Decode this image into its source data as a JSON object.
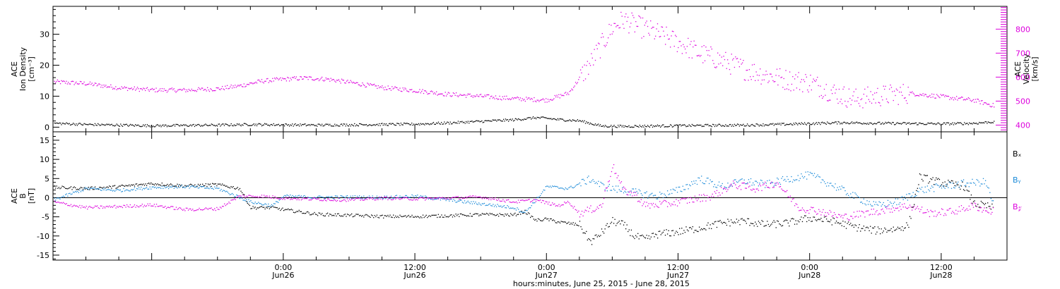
{
  "colors": {
    "density": "#000000",
    "velocity": "#dd00dd",
    "bx": "#000000",
    "by": "#1a8ad8",
    "bz": "#dd00dd",
    "axes": "#000000"
  },
  "chart_data": [
    {
      "type": "scatter",
      "panel": "top",
      "ylabel_left": [
        "ACE",
        "Ion Density",
        "[cm⁻³]"
      ],
      "ylabel_right": [
        "ACE",
        "Velocity",
        "[km/s]"
      ],
      "x_start_hours": -21,
      "x_end_hours": 66,
      "ylim_left": [
        -1.5,
        39
      ],
      "ylim_right": [
        372,
        895
      ],
      "yticks_left": [
        "0",
        "10",
        "20",
        "30"
      ],
      "yticks_right": [
        "400",
        "500",
        "600",
        "700",
        "800"
      ],
      "series": [
        {
          "key": "density",
          "axis": "left",
          "points": [
            [
              -21,
              1.4
            ],
            [
              -18,
              1.0
            ],
            [
              -15,
              0.8
            ],
            [
              -12,
              0.6
            ],
            [
              -9,
              0.7
            ],
            [
              -6,
              0.8
            ],
            [
              -3,
              1.0
            ],
            [
              0,
              0.9
            ],
            [
              3,
              0.8
            ],
            [
              6,
              0.9
            ],
            [
              9,
              1.0
            ],
            [
              12,
              1.1
            ],
            [
              15,
              1.5
            ],
            [
              18,
              2.0
            ],
            [
              21,
              2.5
            ],
            [
              23,
              3.2
            ],
            [
              24,
              3.0
            ],
            [
              25,
              2.6
            ],
            [
              27,
              2.2
            ],
            [
              29,
              0.5
            ],
            [
              31,
              0.4
            ],
            [
              33,
              0.5
            ],
            [
              36,
              0.6
            ],
            [
              39,
              0.7
            ],
            [
              42,
              0.8
            ],
            [
              45,
              1.0
            ],
            [
              48,
              1.3
            ],
            [
              51,
              1.6
            ],
            [
              54,
              1.4
            ],
            [
              57,
              1.3
            ],
            [
              60,
              1.2
            ],
            [
              63,
              1.4
            ],
            [
              64.5,
              1.8
            ]
          ]
        },
        {
          "key": "velocity",
          "axis": "right",
          "points": [
            [
              -21,
              582
            ],
            [
              -18,
              575
            ],
            [
              -15,
              557
            ],
            [
              -12,
              548
            ],
            [
              -9,
              547
            ],
            [
              -6,
              553
            ],
            [
              -4,
              565
            ],
            [
              -2,
              585
            ],
            [
              0,
              593
            ],
            [
              2,
              598
            ],
            [
              4,
              593
            ],
            [
              6,
              580
            ],
            [
              9,
              558
            ],
            [
              12,
              546
            ],
            [
              15,
              530
            ],
            [
              18,
              522
            ],
            [
              21,
              512
            ],
            [
              24,
              506
            ],
            [
              26,
              535
            ],
            [
              28,
              660
            ],
            [
              30,
              810
            ],
            [
              31,
              840
            ],
            [
              32,
              820
            ],
            [
              34,
              785
            ],
            [
              36,
              745
            ],
            [
              38,
              700
            ],
            [
              40,
              670
            ],
            [
              42,
              635
            ],
            [
              44,
              610
            ],
            [
              46,
              590
            ],
            [
              48,
              580
            ],
            [
              50,
              540
            ],
            [
              52,
              510
            ],
            [
              54,
              522
            ],
            [
              57,
              535
            ],
            [
              60,
              520
            ],
            [
              63,
              505
            ],
            [
              65,
              480
            ]
          ]
        }
      ]
    },
    {
      "type": "scatter",
      "panel": "bottom",
      "ylabel": [
        "ACE",
        "B",
        "[nT]"
      ],
      "x_start_hours": -21,
      "x_end_hours": 66,
      "ylim": [
        -16.3,
        17.2
      ],
      "yticks": [
        "-15",
        "-10",
        "-5",
        "0",
        "5",
        "10",
        "15"
      ],
      "series": [
        {
          "key": "bx",
          "name": "Bₓ",
          "points": [
            [
              -21,
              2.8
            ],
            [
              -18,
              2.5
            ],
            [
              -15,
              3.0
            ],
            [
              -12,
              3.8
            ],
            [
              -9,
              3.2
            ],
            [
              -6,
              3.5
            ],
            [
              -4,
              2.5
            ],
            [
              -3,
              -2.5
            ],
            [
              -1,
              -2.5
            ],
            [
              0,
              -3.0
            ],
            [
              3,
              -4.2
            ],
            [
              6,
              -4.5
            ],
            [
              9,
              -4.8
            ],
            [
              12,
              -4.8
            ],
            [
              15,
              -4.6
            ],
            [
              18,
              -4.3
            ],
            [
              21,
              -4.4
            ],
            [
              22,
              -3.5
            ],
            [
              23,
              -5.8
            ],
            [
              24,
              -5.5
            ],
            [
              25,
              -6.2
            ],
            [
              27,
              -7.0
            ],
            [
              28,
              -11.5
            ],
            [
              29,
              -9.0
            ],
            [
              30,
              -6.0
            ],
            [
              31,
              -7.0
            ],
            [
              32,
              -10.0
            ],
            [
              33,
              -10.8
            ],
            [
              34,
              -9.5
            ],
            [
              36,
              -8.8
            ],
            [
              38,
              -7.8
            ],
            [
              40,
              -6.5
            ],
            [
              42,
              -6.0
            ],
            [
              44,
              -7.0
            ],
            [
              46,
              -6.5
            ],
            [
              48,
              -5.2
            ],
            [
              50,
              -6.0
            ],
            [
              52,
              -7.5
            ],
            [
              54,
              -8.5
            ],
            [
              56,
              -8.0
            ],
            [
              57,
              -7.0
            ],
            [
              58,
              5.5
            ],
            [
              60,
              4.0
            ],
            [
              62,
              3.2
            ],
            [
              63,
              -1.5
            ],
            [
              64,
              -2.0
            ],
            [
              65,
              -2.8
            ]
          ]
        },
        {
          "key": "by",
          "name": "Bᵧ",
          "points": [
            [
              -21,
              -0.5
            ],
            [
              -18,
              2.5
            ],
            [
              -15,
              2.0
            ],
            [
              -12,
              2.8
            ],
            [
              -9,
              3.0
            ],
            [
              -6,
              2.5
            ],
            [
              -3,
              -1.0
            ],
            [
              -1,
              -2.0
            ],
            [
              0,
              0.5
            ],
            [
              3,
              0.2
            ],
            [
              6,
              0.3
            ],
            [
              9,
              0.2
            ],
            [
              12,
              0.5
            ],
            [
              15,
              -0.5
            ],
            [
              18,
              -1.5
            ],
            [
              21,
              -2.5
            ],
            [
              22,
              -3.8
            ],
            [
              23,
              -0.5
            ],
            [
              24,
              3.0
            ],
            [
              26,
              2.5
            ],
            [
              28,
              5.0
            ],
            [
              29,
              3.2
            ],
            [
              30,
              2.5
            ],
            [
              32,
              1.5
            ],
            [
              34,
              0.5
            ],
            [
              36,
              2.0
            ],
            [
              38,
              5.0
            ],
            [
              40,
              3.0
            ],
            [
              42,
              4.5
            ],
            [
              44,
              3.5
            ],
            [
              46,
              5.0
            ],
            [
              48,
              6.0
            ],
            [
              50,
              3.5
            ],
            [
              52,
              0.5
            ],
            [
              54,
              -2.0
            ],
            [
              56,
              -1.0
            ],
            [
              58,
              2.0
            ],
            [
              60,
              3.0
            ],
            [
              62,
              3.8
            ],
            [
              64,
              4.2
            ],
            [
              65,
              -3.5
            ]
          ]
        },
        {
          "key": "bz",
          "name": "B𝓏",
          "points": [
            [
              -21,
              -1.0
            ],
            [
              -18,
              -2.5
            ],
            [
              -15,
              -2.2
            ],
            [
              -12,
              -1.8
            ],
            [
              -9,
              -3.0
            ],
            [
              -6,
              -2.8
            ],
            [
              -4,
              0.5
            ],
            [
              -2,
              0.5
            ],
            [
              0,
              0.0
            ],
            [
              3,
              -0.3
            ],
            [
              6,
              -0.5
            ],
            [
              9,
              0.0
            ],
            [
              12,
              -0.2
            ],
            [
              15,
              0.0
            ],
            [
              18,
              0.3
            ],
            [
              21,
              -1.0
            ],
            [
              23,
              -0.5
            ],
            [
              25,
              -2.0
            ],
            [
              26,
              -1.0
            ],
            [
              27,
              -4.0
            ],
            [
              29,
              -2.0
            ],
            [
              30,
              8.5
            ],
            [
              31,
              2.0
            ],
            [
              32,
              1.0
            ],
            [
              33,
              -2.0
            ],
            [
              35,
              -1.5
            ],
            [
              37,
              -0.5
            ],
            [
              39,
              0.5
            ],
            [
              41,
              3.5
            ],
            [
              43,
              2.5
            ],
            [
              45,
              4.0
            ],
            [
              47,
              -2.5
            ],
            [
              49,
              -3.5
            ],
            [
              51,
              -5.0
            ],
            [
              53,
              -4.0
            ],
            [
              55,
              -3.0
            ],
            [
              57,
              -2.0
            ],
            [
              59,
              -4.0
            ],
            [
              61,
              -3.5
            ],
            [
              63,
              -2.0
            ],
            [
              64,
              -3.2
            ],
            [
              65,
              -3.5
            ]
          ]
        }
      ]
    }
  ],
  "x_axis": {
    "ticks": [
      {
        "h": 0,
        "time": "0:00",
        "day": "Jun26"
      },
      {
        "h": 12,
        "time": "12:00",
        "day": "Jun26"
      },
      {
        "h": 24,
        "time": "0:00",
        "day": "Jun27"
      },
      {
        "h": 36,
        "time": "12:00",
        "day": "Jun27"
      },
      {
        "h": 48,
        "time": "0:00",
        "day": "Jun28"
      },
      {
        "h": 60,
        "time": "12:00",
        "day": "Jun28"
      }
    ],
    "label": "hours:minutes, June 25, 2015 - June 28, 2015"
  }
}
